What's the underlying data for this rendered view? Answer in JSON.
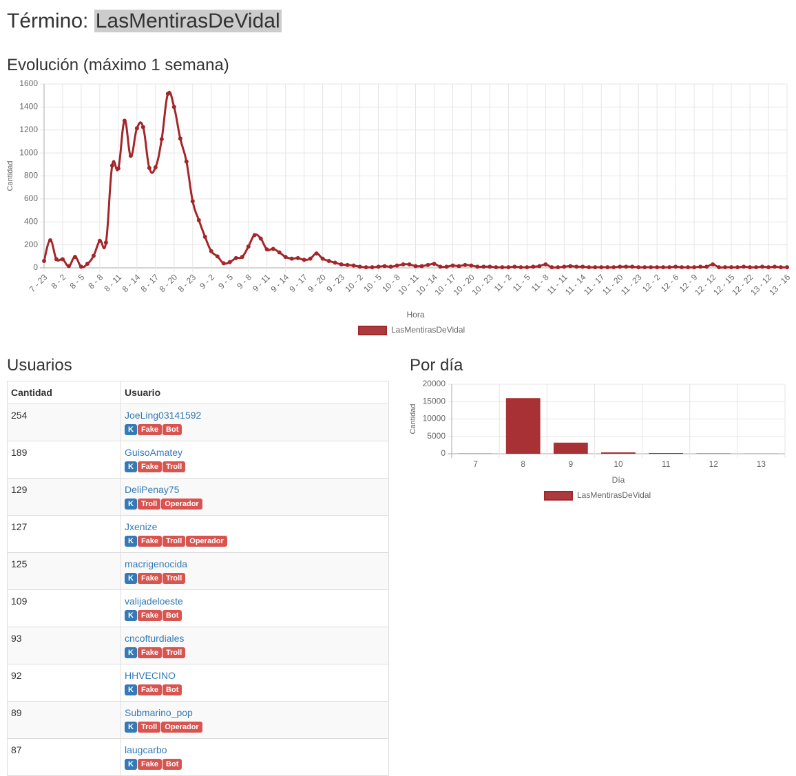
{
  "header": {
    "label": "Término:",
    "term": "LasMentirasDeVidal"
  },
  "chart_data": [
    {
      "type": "line",
      "title": "Evolución (máximo 1 semana)",
      "x_label": "Hora",
      "y_label": "Cantidad",
      "categories": [
        "7 - 23",
        null,
        null,
        "8 - 2",
        null,
        null,
        "8 - 5",
        null,
        null,
        "8 - 8",
        null,
        null,
        "8 - 11",
        null,
        null,
        "8 - 14",
        null,
        null,
        "8 - 17",
        null,
        null,
        "8 - 20",
        null,
        null,
        "8 - 23",
        null,
        null,
        "9 - 2",
        null,
        null,
        "9 - 5",
        null,
        null,
        "9 - 8",
        null,
        null,
        "9 - 11",
        null,
        null,
        "9 - 14",
        null,
        null,
        "9 - 17",
        null,
        null,
        "9 - 20",
        null,
        null,
        "9 - 23",
        null,
        null,
        "10 - 2",
        null,
        null,
        "10 - 5",
        null,
        null,
        "10 - 8",
        null,
        null,
        "10 - 11",
        null,
        null,
        "10 - 14",
        null,
        null,
        "10 - 17",
        null,
        null,
        "10 - 20",
        null,
        null,
        "10 - 23",
        null,
        null,
        "11 - 2",
        null,
        null,
        "11 - 5",
        null,
        null,
        "11 - 8",
        null,
        null,
        "11 - 11",
        null,
        null,
        "11 - 14",
        null,
        null,
        "11 - 17",
        null,
        null,
        "11 - 20",
        null,
        null,
        "11 - 23",
        null,
        null,
        "12 - 2",
        null,
        null,
        "12 - 6",
        null,
        null,
        "12 - 9",
        null,
        null,
        "12 - 12",
        null,
        null,
        "12 - 15",
        null,
        null,
        "12 - 22",
        null,
        null,
        "13 - 12",
        null,
        null,
        "13 - 16"
      ],
      "series": [
        {
          "name": "LasMentirasDeVidal",
          "color": "#a3262a",
          "values": [
            60,
            240,
            75,
            75,
            15,
            95,
            10,
            35,
            105,
            235,
            220,
            890,
            865,
            1280,
            975,
            1215,
            1225,
            870,
            875,
            1120,
            1515,
            1400,
            1125,
            925,
            580,
            415,
            270,
            145,
            100,
            40,
            50,
            85,
            95,
            185,
            285,
            255,
            160,
            165,
            135,
            95,
            80,
            85,
            70,
            80,
            125,
            80,
            60,
            45,
            30,
            25,
            20,
            10,
            5,
            5,
            10,
            15,
            10,
            20,
            30,
            30,
            15,
            15,
            25,
            35,
            10,
            10,
            20,
            15,
            25,
            20,
            10,
            10,
            10,
            5,
            5,
            5,
            10,
            5,
            5,
            10,
            15,
            30,
            5,
            5,
            10,
            15,
            10,
            10,
            5,
            5,
            5,
            5,
            5,
            10,
            10,
            10,
            5,
            5,
            5,
            5,
            5,
            5,
            10,
            5,
            5,
            5,
            10,
            10,
            30,
            5,
            5,
            5,
            5,
            10,
            5,
            5,
            10,
            5,
            10,
            5,
            5
          ]
        }
      ],
      "ylim": [
        0,
        1600
      ],
      "yticks": [
        0,
        200,
        400,
        600,
        800,
        1000,
        1200,
        1400,
        1600
      ],
      "grid": true,
      "legend": "bottom"
    },
    {
      "type": "bar",
      "title": "Por día",
      "x_label": "Día",
      "y_label": "Cantidad",
      "categories": [
        "7",
        "8",
        "9",
        "10",
        "11",
        "12",
        "13"
      ],
      "series": [
        {
          "name": "LasMentirasDeVidal",
          "color": "#a3262a",
          "values": [
            60,
            16000,
            3200,
            400,
            200,
            100,
            30
          ]
        }
      ],
      "ylim": [
        0,
        20000
      ],
      "yticks": [
        0,
        5000,
        10000,
        15000,
        20000
      ],
      "grid": true,
      "legend": "bottom"
    }
  ],
  "users": {
    "title": "Usuarios",
    "columns": [
      "Cantidad",
      "Usuario"
    ],
    "rows": [
      {
        "count": 254,
        "user": "JoeLing03141592",
        "tags": [
          "K",
          "Fake",
          "Bot"
        ]
      },
      {
        "count": 189,
        "user": "GuisoAmatey",
        "tags": [
          "K",
          "Fake",
          "Troll"
        ]
      },
      {
        "count": 129,
        "user": "DeliPenay75",
        "tags": [
          "K",
          "Troll",
          "Operador"
        ]
      },
      {
        "count": 127,
        "user": "Jxenize",
        "tags": [
          "K",
          "Fake",
          "Troll",
          "Operador"
        ]
      },
      {
        "count": 125,
        "user": "macrigenocida",
        "tags": [
          "K",
          "Fake",
          "Troll"
        ]
      },
      {
        "count": 109,
        "user": "valijadeloeste",
        "tags": [
          "K",
          "Fake",
          "Bot"
        ]
      },
      {
        "count": 93,
        "user": "cncofturdiales",
        "tags": [
          "K",
          "Fake",
          "Troll"
        ]
      },
      {
        "count": 92,
        "user": "HHVECINO",
        "tags": [
          "K",
          "Fake",
          "Bot"
        ]
      },
      {
        "count": 89,
        "user": "Submarino_pop",
        "tags": [
          "K",
          "Troll",
          "Operador"
        ]
      },
      {
        "count": 87,
        "user": "laugcarbo",
        "tags": [
          "K",
          "Fake",
          "Bot"
        ]
      }
    ]
  }
}
